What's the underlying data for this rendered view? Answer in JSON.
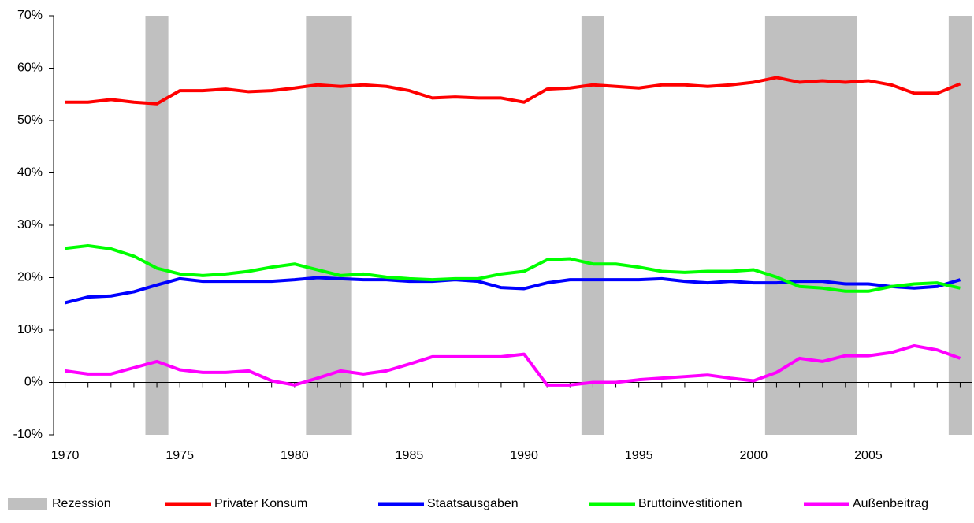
{
  "chart_data": {
    "type": "line",
    "x": [
      1970,
      1971,
      1972,
      1973,
      1974,
      1975,
      1976,
      1977,
      1978,
      1979,
      1980,
      1981,
      1982,
      1983,
      1984,
      1985,
      1986,
      1987,
      1988,
      1989,
      1990,
      1991,
      1992,
      1993,
      1994,
      1995,
      1996,
      1997,
      1998,
      1999,
      2000,
      2001,
      2002,
      2003,
      2004,
      2005,
      2006,
      2007,
      2008,
      2009
    ],
    "xlim": [
      1969.5,
      2009.5
    ],
    "xticks": [
      1970,
      1975,
      1980,
      1985,
      1990,
      1995,
      2000,
      2005
    ],
    "ylim": [
      -10,
      70
    ],
    "yticks": [
      {
        "value": -10,
        "label": "-10%"
      },
      {
        "value": 0,
        "label": "0%"
      },
      {
        "value": 10,
        "label": "10%"
      },
      {
        "value": 20,
        "label": "20%"
      },
      {
        "value": 30,
        "label": "30%"
      },
      {
        "value": 40,
        "label": "40%"
      },
      {
        "value": 50,
        "label": "50%"
      },
      {
        "value": 60,
        "label": "60%"
      },
      {
        "value": 70,
        "label": "70%"
      }
    ],
    "grid": false,
    "legend": "bottom",
    "recession": {
      "name": "Rezession",
      "color": "#c0c0c0",
      "ranges": [
        [
          1973.5,
          1974.5
        ],
        [
          1980.5,
          1982.5
        ],
        [
          1992.5,
          1993.5
        ],
        [
          2000.5,
          2004.5
        ],
        [
          2008.5,
          2009.5
        ]
      ]
    },
    "series": [
      {
        "name": "Privater Konsum",
        "color": "#ff0000",
        "values": [
          53.5,
          53.5,
          54,
          53.5,
          53.2,
          55.7,
          55.7,
          56,
          55.5,
          55.7,
          56.2,
          56.8,
          56.5,
          56.8,
          56.5,
          55.7,
          54.3,
          54.5,
          54.3,
          54.3,
          53.5,
          56,
          56.2,
          56.8,
          56.5,
          56.2,
          56.8,
          56.8,
          56.5,
          56.8,
          57.3,
          58.2,
          57.3,
          57.6,
          57.3,
          57.6,
          56.8,
          55.2,
          55.2,
          57
        ]
      },
      {
        "name": "Staatsausgaben",
        "color": "#0000ff",
        "values": [
          15.2,
          16.3,
          16.5,
          17.3,
          18.6,
          19.8,
          19.3,
          19.3,
          19.3,
          19.3,
          19.6,
          20,
          19.8,
          19.6,
          19.6,
          19.3,
          19.3,
          19.6,
          19.3,
          18.1,
          17.9,
          19,
          19.6,
          19.6,
          19.6,
          19.6,
          19.8,
          19.3,
          19,
          19.3,
          19,
          19,
          19.3,
          19.3,
          18.8,
          18.8,
          18.3,
          18,
          18.3,
          19.6
        ]
      },
      {
        "name": "Bruttoinvestitionen",
        "color": "#00ff00",
        "values": [
          25.6,
          26.1,
          25.5,
          24.1,
          21.8,
          20.7,
          20.4,
          20.7,
          21.2,
          22,
          22.6,
          21.5,
          20.4,
          20.7,
          20.1,
          19.8,
          19.6,
          19.8,
          19.8,
          20.7,
          21.2,
          23.4,
          23.6,
          22.6,
          22.6,
          22,
          21.2,
          21,
          21.2,
          21.2,
          21.5,
          20.1,
          18.3,
          18,
          17.4,
          17.4,
          18.3,
          18.8,
          19,
          18
        ]
      },
      {
        "name": "Außenbeitrag",
        "color": "#ff00ff",
        "values": [
          2.2,
          1.6,
          1.6,
          2.8,
          4,
          2.4,
          1.9,
          1.9,
          2.2,
          0.3,
          -0.5,
          0.8,
          2.2,
          1.6,
          2.2,
          3.5,
          4.9,
          4.9,
          4.9,
          4.9,
          5.4,
          -0.5,
          -0.5,
          0,
          0,
          0.5,
          0.8,
          1.1,
          1.4,
          0.8,
          0.3,
          1.9,
          4.6,
          4,
          5.1,
          5.1,
          5.7,
          7,
          6.2,
          4.6
        ]
      }
    ]
  }
}
